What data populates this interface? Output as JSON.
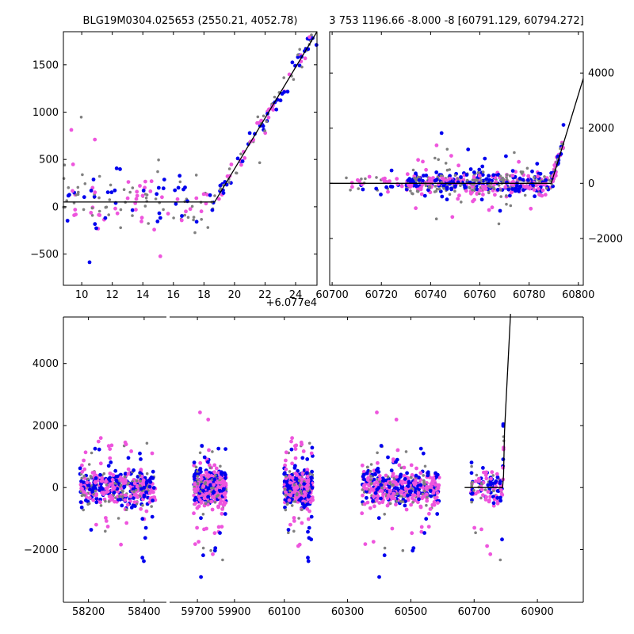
{
  "chart_data": [
    {
      "type": "scatter",
      "title": "BLG19M0304.025653 (2550.21, 4052.78)",
      "xlim": [
        8.8,
        25.4
      ],
      "ylim": [
        -830,
        1850
      ],
      "x_offset_label": "+6.077e4",
      "xticks": [
        10,
        12,
        14,
        16,
        18,
        20,
        22,
        24
      ],
      "yticks": [
        -500,
        0,
        500,
        1000,
        1500
      ],
      "ytick_side": "left",
      "model_line": {
        "x": [
          8.8,
          18.7,
          25.4
        ],
        "y": [
          50,
          50,
          1850
        ]
      }
    },
    {
      "type": "scatter",
      "title": "3 753 1196.66 -8.000 -8 [60791.129, 60794.272]",
      "xlim": [
        60699,
        60802
      ],
      "ylim": [
        -3700,
        5500
      ],
      "xticks": [
        60700,
        60720,
        60740,
        60760,
        60780,
        60800
      ],
      "yticks": [
        -2000,
        0,
        2000,
        4000
      ],
      "ytick_side": "right",
      "model_line": {
        "x": [
          60699,
          60789,
          60802
        ],
        "y": [
          0,
          0,
          3800
        ]
      }
    },
    {
      "type": "scatter",
      "title": "",
      "ylim": [
        -3700,
        5500
      ],
      "yticks": [
        -2000,
        0,
        2000,
        4000
      ],
      "ytick_side": "left",
      "panels": [
        {
          "xlim": [
            58110,
            58480
          ],
          "xticks": [
            58200,
            58400
          ]
        },
        {
          "xlim": [
            59550,
            60003
          ],
          "xticks": [
            59700,
            59900
          ]
        },
        {
          "xlim": [
            60003,
            61045
          ],
          "xticks": [
            60100,
            60300,
            60500,
            60700,
            60900
          ]
        }
      ],
      "model_line": {
        "x": [
          60670,
          60790,
          60793,
          60796,
          60815
        ],
        "y": [
          0,
          0,
          400,
          1800,
          5600
        ]
      }
    }
  ],
  "series_colors": {
    "band_a": "#808080",
    "band_b": "#0000ee",
    "band_c": "#ee55dd"
  },
  "line_color": "#000000"
}
